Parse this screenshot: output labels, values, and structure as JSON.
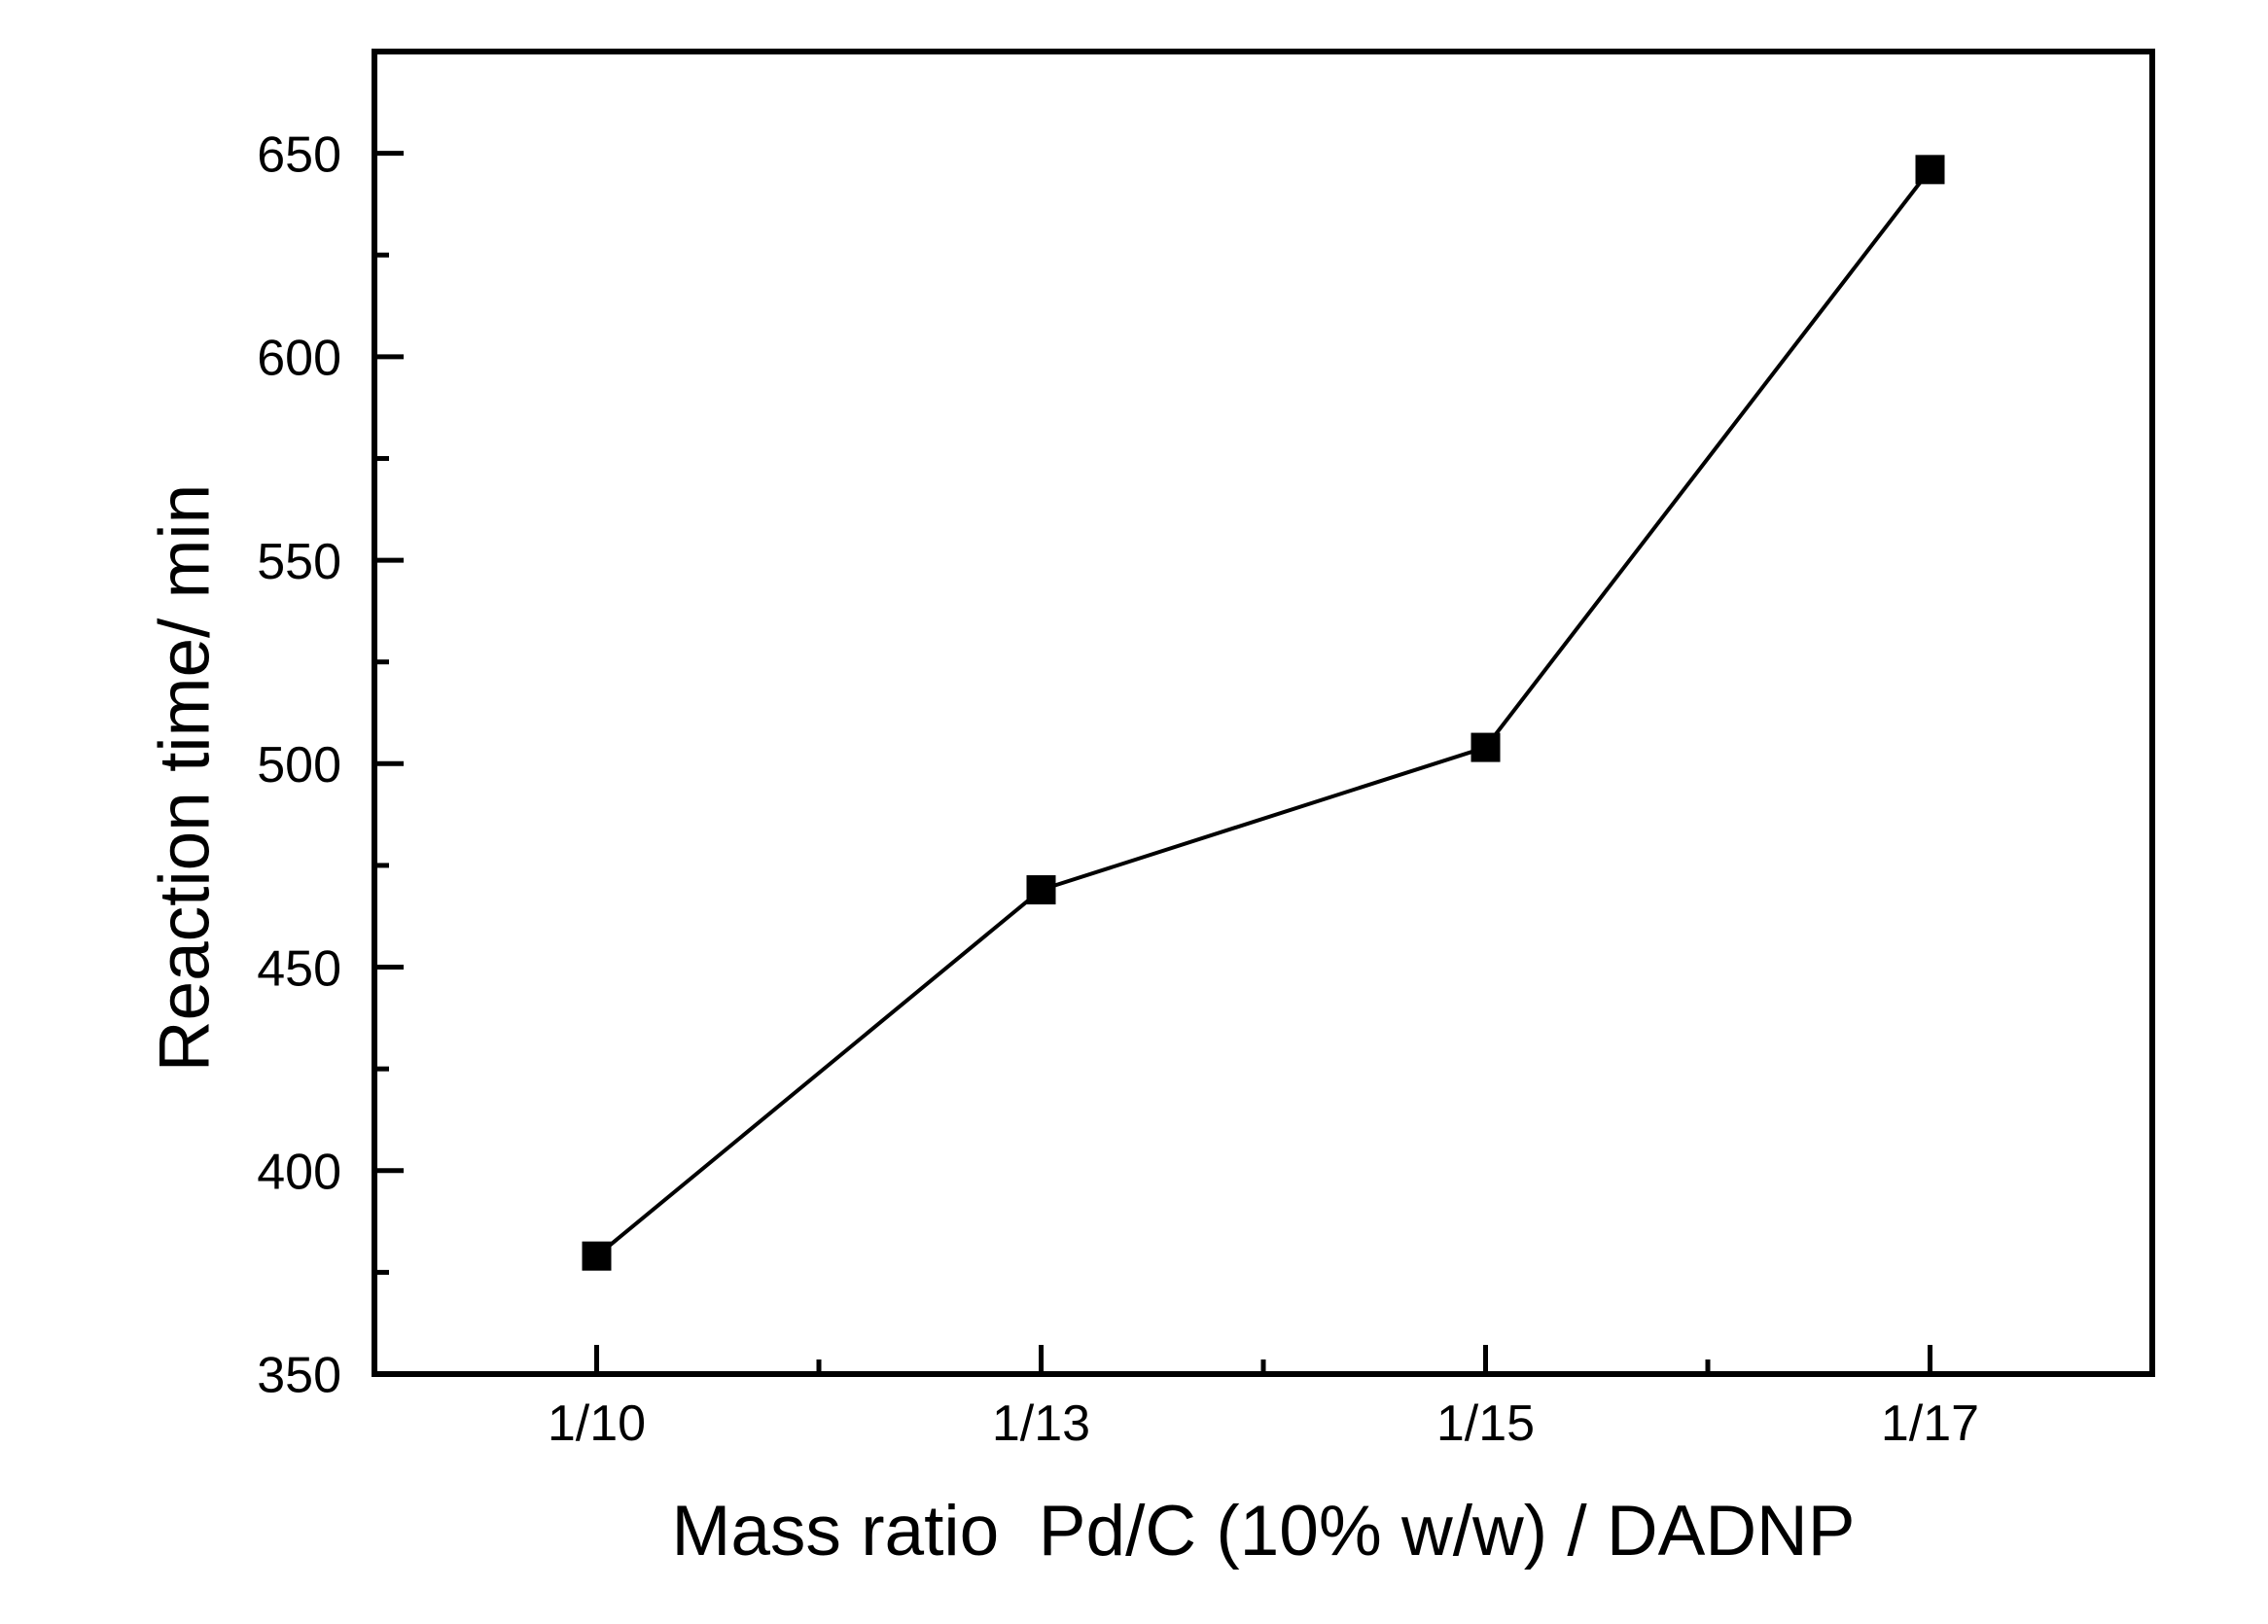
{
  "chart_data": {
    "type": "line",
    "title": "",
    "xlabel": "Mass ratio  Pd/C (10% w/w) / DADNP",
    "ylabel": "Reaction time/ min",
    "categories": [
      "1/10",
      "1/13",
      "1/15",
      "1/17"
    ],
    "series": [
      {
        "name": "Reaction time",
        "values": [
          379,
          469,
          504,
          646
        ]
      }
    ],
    "ylim": [
      350,
      675
    ],
    "y_major_ticks": [
      350,
      400,
      450,
      500,
      550,
      600,
      650
    ],
    "y_minor_step": 25,
    "x_minor_between_categories": true,
    "marker": "square",
    "line_color": "#000000",
    "marker_color": "#000000",
    "axis_color": "#000000",
    "text_color": "#000000",
    "background": "#ffffff",
    "grid": false,
    "legend": false,
    "frame": "box",
    "tick_direction": "in"
  }
}
